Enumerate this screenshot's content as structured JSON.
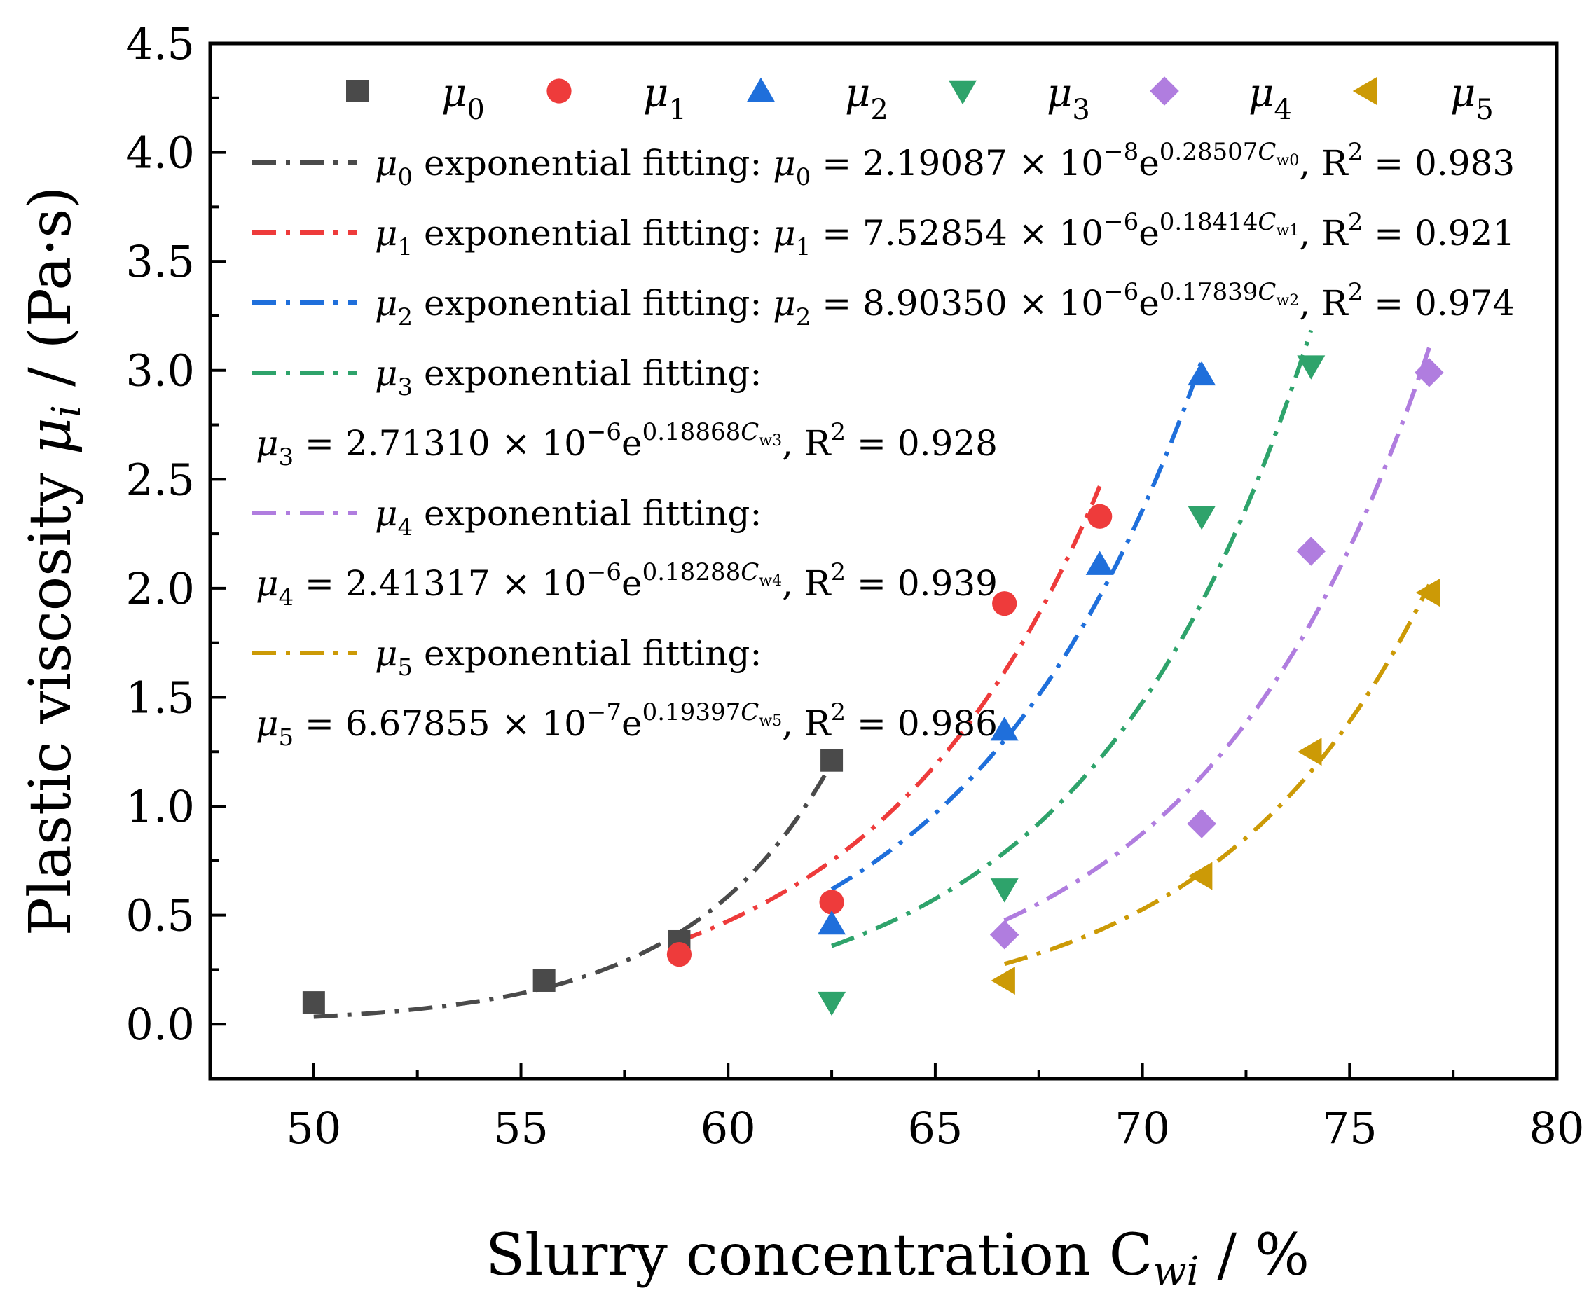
{
  "chart_data": {
    "type": "scatter",
    "xlabel_main": "Slurry concentration ",
    "xlabel_var": "C",
    "xlabel_sub": "wi",
    "xlabel_unit": " / %",
    "ylabel_main": "Plastic viscosity ",
    "ylabel_var": "μ",
    "ylabel_sub": "i",
    "ylabel_unit": " / (Pa·s)",
    "xlim": [
      47.5,
      80
    ],
    "ylim": [
      -0.25,
      4.5
    ],
    "xticks": [
      50,
      55,
      60,
      65,
      70,
      75,
      80
    ],
    "yticks": [
      0.0,
      0.5,
      1.0,
      1.5,
      2.0,
      2.5,
      3.0,
      3.5,
      4.0,
      4.5
    ],
    "xtick_labels": [
      "50",
      "55",
      "60",
      "65",
      "70",
      "75",
      "80"
    ],
    "ytick_labels": [
      "0.0",
      "0.5",
      "1.0",
      "1.5",
      "2.0",
      "2.5",
      "3.0",
      "3.5",
      "4.0",
      "4.5"
    ],
    "legend_position": "top-left",
    "series": [
      {
        "name": "μ0",
        "symbol_base": "μ",
        "symbol_sub": "0",
        "marker": "square",
        "color": "#4a4a4a",
        "x": [
          50.0,
          55.56,
          58.82,
          62.5
        ],
        "y": [
          0.1,
          0.2,
          0.38,
          1.21
        ],
        "fit": {
          "a": 2.19087e-08,
          "b": 0.28507,
          "xrange": [
            50.0,
            62.5
          ]
        },
        "fit_label_lead": " exponential fitting: ",
        "fit_eq_a": " = 2.19087 × 10",
        "fit_eq_exp": "−8",
        "fit_eq_b": "0.28507",
        "fit_eq_csub": "w0",
        "fit_r2": ", R",
        "fit_r2_val": " = 0.983"
      },
      {
        "name": "μ1",
        "symbol_base": "μ",
        "symbol_sub": "1",
        "marker": "circle",
        "color": "#ee3b3b",
        "x": [
          58.82,
          62.5,
          66.67,
          68.97
        ],
        "y": [
          0.32,
          0.56,
          1.93,
          2.33
        ],
        "fit": {
          "a": 7.52854e-06,
          "b": 0.18414,
          "xrange": [
            58.82,
            68.97
          ]
        },
        "fit_label_lead": " exponential fitting: ",
        "fit_eq_a": " = 7.52854 × 10",
        "fit_eq_exp": "−6",
        "fit_eq_b": "0.18414",
        "fit_eq_csub": "w1",
        "fit_r2": ", R",
        "fit_r2_val": " = 0.921"
      },
      {
        "name": "μ2",
        "symbol_base": "μ",
        "symbol_sub": "2",
        "marker": "triangle-up",
        "color": "#1f6fdb",
        "x": [
          62.5,
          66.67,
          68.97,
          71.43
        ],
        "y": [
          0.46,
          1.35,
          2.11,
          2.98
        ],
        "fit": {
          "a": 8.9035e-06,
          "b": 0.17839,
          "xrange": [
            62.5,
            71.43
          ]
        },
        "fit_label_lead": " exponential fitting: ",
        "fit_eq_a": " = 8.90350 × 10",
        "fit_eq_exp": "−6",
        "fit_eq_b": "0.17839",
        "fit_eq_csub": "w2",
        "fit_r2": ", R",
        "fit_r2_val": " = 0.974"
      },
      {
        "name": "μ3",
        "symbol_base": "μ",
        "symbol_sub": "3",
        "marker": "triangle-down",
        "color": "#2ea36b",
        "x": [
          62.5,
          66.67,
          71.43,
          74.07
        ],
        "y": [
          0.1,
          0.62,
          2.33,
          3.02
        ],
        "fit": {
          "a": 2.7131e-06,
          "b": 0.18868,
          "xrange": [
            62.5,
            74.07
          ]
        },
        "fit_label_lead": " exponential fitting:",
        "fit_eq_a": " = 2.71310 × 10",
        "fit_eq_exp": "−6",
        "fit_eq_b": "0.18868",
        "fit_eq_csub": "w3",
        "fit_r2": ", R",
        "fit_r2_val": " = 0.928"
      },
      {
        "name": "μ4",
        "symbol_base": "μ",
        "symbol_sub": "4",
        "marker": "diamond",
        "color": "#b07ddf",
        "x": [
          66.67,
          71.43,
          74.07,
          76.92
        ],
        "y": [
          0.41,
          0.92,
          2.17,
          2.99
        ],
        "fit": {
          "a": 2.41317e-06,
          "b": 0.18288,
          "xrange": [
            66.67,
            76.92
          ]
        },
        "fit_label_lead": " exponential fitting:",
        "fit_eq_a": " = 2.41317 × 10",
        "fit_eq_exp": "−6",
        "fit_eq_b": "0.18288",
        "fit_eq_csub": "w4",
        "fit_r2": ", R",
        "fit_r2_val": " = 0.939"
      },
      {
        "name": "μ5",
        "symbol_base": "μ",
        "symbol_sub": "5",
        "marker": "triangle-left",
        "color": "#cc9a06",
        "x": [
          66.67,
          71.43,
          74.07,
          76.92
        ],
        "y": [
          0.2,
          0.68,
          1.25,
          1.98
        ],
        "fit": {
          "a": 6.67855e-07,
          "b": 0.19397,
          "xrange": [
            66.67,
            76.92
          ]
        },
        "fit_label_lead": " exponential fitting:",
        "fit_eq_a": " = 6.67855 × 10",
        "fit_eq_exp": "−7",
        "fit_eq_b": "0.19397",
        "fit_eq_csub": "w5",
        "fit_r2": ", R",
        "fit_r2_val": " = 0.986"
      }
    ]
  }
}
